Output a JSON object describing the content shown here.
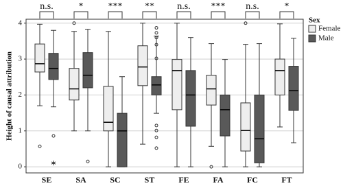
{
  "chart_data": {
    "type": "box",
    "y_label": "Height of causal attribution",
    "categories": [
      "SE",
      "SA",
      "SC",
      "ST",
      "FE",
      "FA",
      "FC",
      "FT"
    ],
    "significance": [
      "n.s.",
      "*",
      "***",
      "**",
      "n.s.",
      "***",
      "n.s.",
      "*"
    ],
    "legend_title": "Sex",
    "ylim": [
      -0.17,
      4.11
    ],
    "yticks": [
      0,
      1,
      2,
      3,
      4
    ],
    "grid": true,
    "series": [
      {
        "name": "Female",
        "color": "#eeeeee",
        "boxes": [
          {
            "min": 1.7,
            "q1": 2.64,
            "median": 2.87,
            "q3": 3.42,
            "max": 3.97,
            "outliers": [
              0.57
            ]
          },
          {
            "min": 1.0,
            "q1": 1.86,
            "median": 2.17,
            "q3": 2.74,
            "max": 3.77,
            "outliers": [
              4.0
            ]
          },
          {
            "min": 0,
            "q1": 1.0,
            "median": 1.24,
            "q3": 2.24,
            "max": 3.77,
            "outliers": []
          },
          {
            "min": 0.63,
            "q1": 2.26,
            "median": 2.78,
            "q3": 3.37,
            "max": 4.0,
            "outliers": []
          },
          {
            "min": 0,
            "q1": 1.59,
            "median": 2.68,
            "q3": 2.99,
            "max": 4.0,
            "outliers": []
          },
          {
            "min": 0.57,
            "q1": 1.72,
            "median": 2.17,
            "q3": 2.55,
            "max": 3.43,
            "outliers": [
              0
            ]
          },
          {
            "min": 0,
            "q1": 0.44,
            "median": 1.01,
            "q3": 1.78,
            "max": 3.41,
            "outliers": [
              4.0
            ]
          },
          {
            "min": 1.11,
            "q1": 2.0,
            "median": 2.68,
            "q3": 3.0,
            "max": 3.98,
            "outliers": []
          }
        ]
      },
      {
        "name": "Male",
        "color": "#595959",
        "boxes": [
          {
            "min": 1.67,
            "q1": 2.43,
            "median": 2.74,
            "q3": 3.16,
            "max": 3.8,
            "outliers": [
              0.86
            ],
            "extremes": [
              0.13
            ]
          },
          {
            "min": 1.0,
            "q1": 2.2,
            "median": 2.55,
            "q3": 3.18,
            "max": 3.83,
            "outliers": [
              0.15
            ]
          },
          {
            "min": 0,
            "q1": 0,
            "median": 1.0,
            "q3": 1.49,
            "max": 2.51,
            "outliers": []
          },
          {
            "min": 1.49,
            "q1": 2.0,
            "median": 2.28,
            "q3": 2.51,
            "max": 3.64,
            "outliers": [
              3.87,
              3.73,
              3.6,
              3.4,
              3.02,
              1.15,
              1.01,
              0.82,
              0.52
            ]
          },
          {
            "min": 0,
            "q1": 1.13,
            "median": 2.0,
            "q3": 2.68,
            "max": 3.6,
            "outliers": []
          },
          {
            "min": 0,
            "q1": 0.86,
            "median": 1.59,
            "q3": 2.0,
            "max": 2.99,
            "outliers": []
          },
          {
            "min": 0,
            "q1": 0.11,
            "median": 0.78,
            "q3": 2.0,
            "max": 3.43,
            "outliers": []
          },
          {
            "min": 0.67,
            "q1": 1.57,
            "median": 2.12,
            "q3": 2.8,
            "max": 3.58,
            "outliers": []
          }
        ]
      }
    ]
  }
}
